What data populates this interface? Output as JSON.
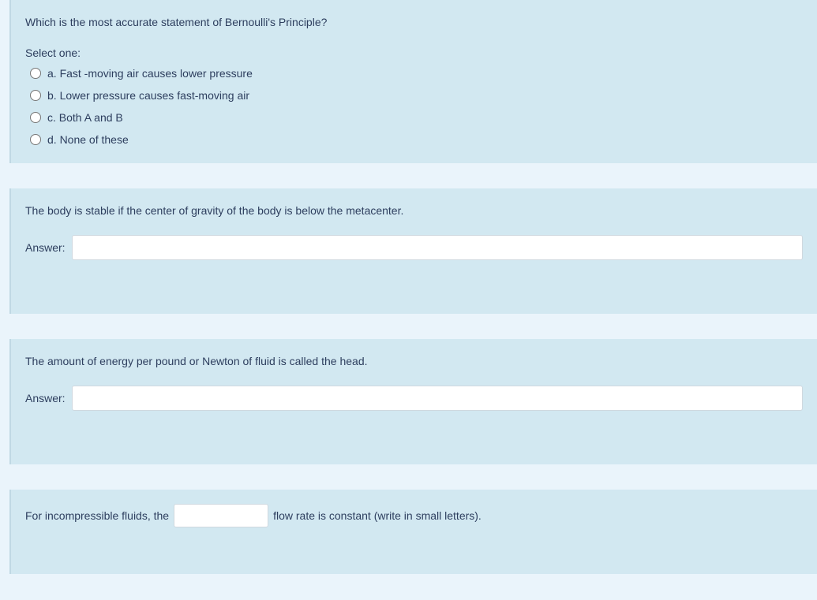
{
  "colors": {
    "page_bg": "#eaf4fb",
    "block_bg": "#d2e8f1",
    "text": "#2d3e5e",
    "input_border": "#cfd8df",
    "input_bg": "#ffffff"
  },
  "q1": {
    "prompt": "Which is the most accurate statement of Bernoulli's Principle?",
    "select_one": "Select one:",
    "options": {
      "a": "a. Fast -moving air causes lower pressure",
      "b": "b. Lower pressure causes fast-moving air",
      "c": "c. Both A and B",
      "d": "d. None of these"
    }
  },
  "q2": {
    "prompt": "The body is stable if the center of gravity of the body is below the metacenter.",
    "answer_label": "Answer:",
    "answer_value": ""
  },
  "q3": {
    "prompt": "The amount of energy per pound or Newton of fluid is called the head.",
    "answer_label": "Answer:",
    "answer_value": ""
  },
  "q4": {
    "text_before": "For incompressible fluids, the",
    "blank_value": "",
    "text_after": "flow rate is constant (write in small letters)."
  }
}
